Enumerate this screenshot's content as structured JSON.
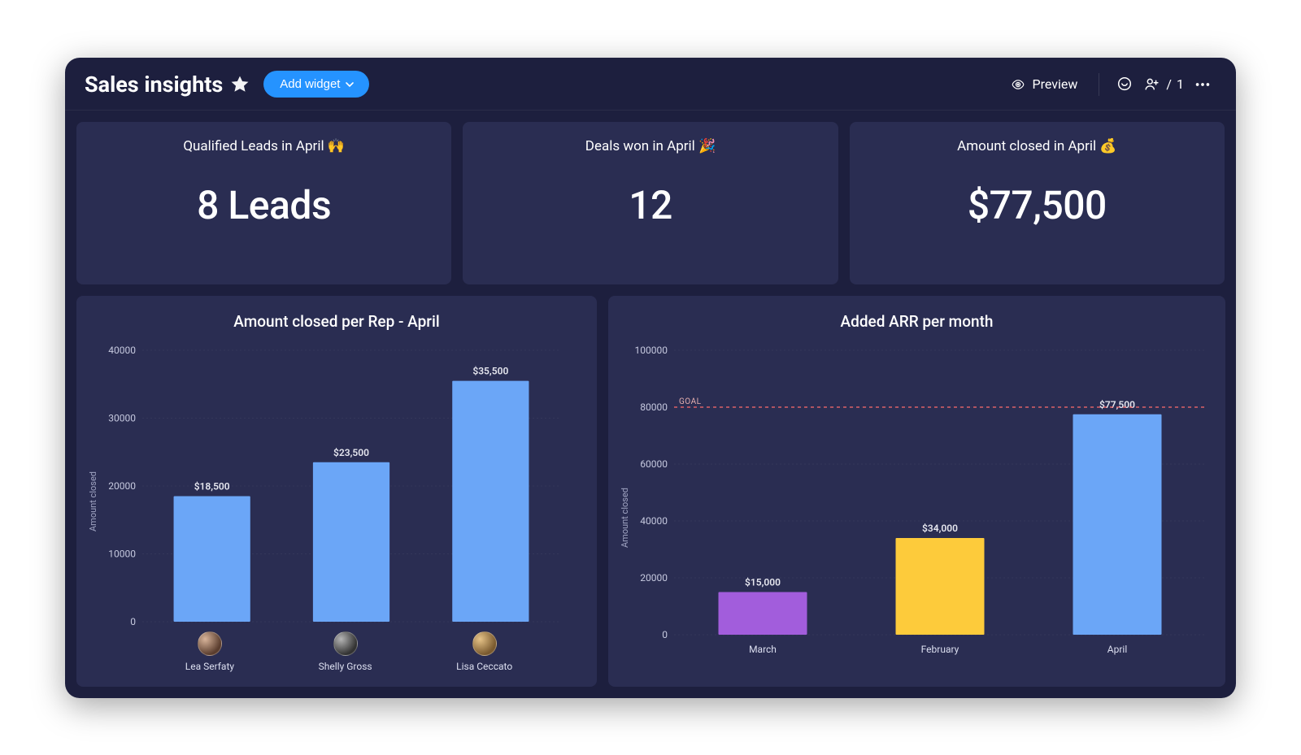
{
  "header": {
    "title": "Sales insights",
    "add_widget_label": "Add widget",
    "preview_label": "Preview",
    "people_count": "1"
  },
  "colors": {
    "frame_bg": "#1d1f3e",
    "card_bg": "#2a2d52",
    "accent_button": "#2593ff",
    "text": "#ffffff",
    "muted_text": "#c6c9df",
    "grid": "rgba(255,255,255,0.05)",
    "goal_line": "#ff6b6b"
  },
  "kpis": [
    {
      "title": "Qualified Leads in April 🙌",
      "value": "8 Leads"
    },
    {
      "title": "Deals won in April 🎉",
      "value": "12"
    },
    {
      "title": "Amount closed in April 💰",
      "value": "$77,500"
    }
  ],
  "chart_left": {
    "type": "bar",
    "title": "Amount closed per Rep - April",
    "ylabel": "Amount closed",
    "ylim": [
      0,
      40000
    ],
    "ytick_step": 10000,
    "bar_width": 0.55,
    "bar_color": "#6ba6f7",
    "label_fontsize": 12,
    "title_fontsize": 19,
    "background_color": "#2a2d52",
    "grid_color": "rgba(255,255,255,0.05)",
    "categories": [
      "Lea Serfaty",
      "Shelly Gross",
      "Lisa Ceccato"
    ],
    "values": [
      18500,
      23500,
      35500
    ],
    "value_labels": [
      "$18,500",
      "$23,500",
      "$35,500"
    ]
  },
  "chart_right": {
    "type": "bar",
    "title": "Added ARR per month",
    "ylabel": "Amount closed",
    "ylim": [
      0,
      100000
    ],
    "ytick_step": 20000,
    "bar_width": 0.5,
    "label_fontsize": 12,
    "title_fontsize": 19,
    "background_color": "#2a2d52",
    "grid_color": "rgba(255,255,255,0.05)",
    "categories": [
      "March",
      "February",
      "April"
    ],
    "values": [
      15000,
      34000,
      77500
    ],
    "value_labels": [
      "$15,000",
      "$34,000",
      "$77,500"
    ],
    "bar_colors": [
      "#a25ddc",
      "#fdcb3b",
      "#6ba6f7"
    ],
    "goal": {
      "value": 80000,
      "label": "GOAL"
    }
  }
}
